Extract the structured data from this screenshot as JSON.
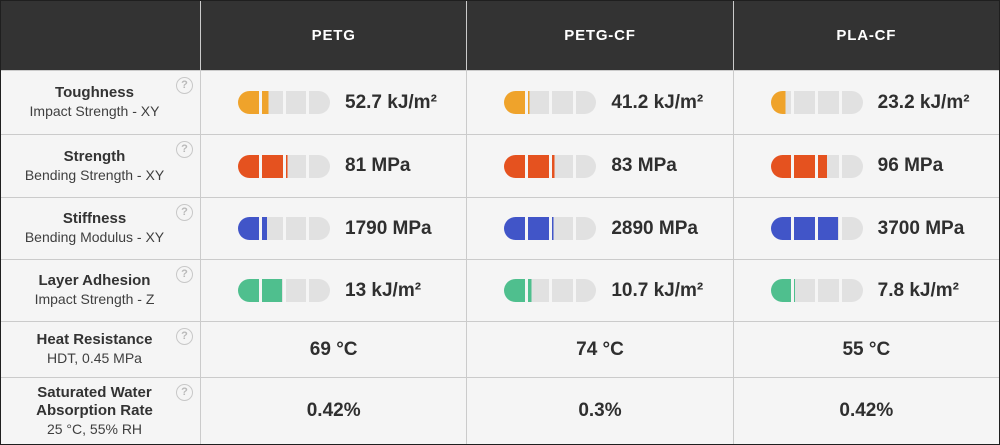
{
  "colors": {
    "header_bg": "#333333",
    "header_text": "#ffffff",
    "row_bg": "#f5f5f5",
    "grid_line": "#cbcbcb",
    "outer_border": "#1f1f1f",
    "gauge_empty": "#e1e1e1",
    "toughness_accent": "#efa32b",
    "strength_accent": "#e5521f",
    "stiffness_accent": "#4155c8",
    "adhesion_accent": "#4fbf8e"
  },
  "help_icon_glyph": "?",
  "columns": [
    "PETG",
    "PETG-CF",
    "PLA-CF"
  ],
  "rows": [
    {
      "id": "toughness",
      "title": "Toughness",
      "subtitle": "Impact Strength - XY",
      "type": "gauge",
      "color": "#efa32b",
      "cells": [
        {
          "value": "52.7 kJ/m²",
          "pct": 33
        },
        {
          "value": "41.2 kJ/m²",
          "pct": 27
        },
        {
          "value": "23.2 kJ/m²",
          "pct": 18
        }
      ]
    },
    {
      "id": "strength",
      "title": "Strength",
      "subtitle": "Bending Strength - XY",
      "type": "gauge",
      "color": "#e5521f",
      "cells": [
        {
          "value": "81 MPa",
          "pct": 52
        },
        {
          "value": "83 MPa",
          "pct": 53
        },
        {
          "value": "96 MPa",
          "pct": 61
        }
      ]
    },
    {
      "id": "stiffness",
      "title": "Stiffness",
      "subtitle": "Bending Modulus - XY",
      "type": "gauge",
      "color": "#4155c8",
      "cells": [
        {
          "value": "1790 MPa",
          "pct": 31
        },
        {
          "value": "2890 MPa",
          "pct": 52
        },
        {
          "value": "3700 MPa",
          "pct": 74
        }
      ]
    },
    {
      "id": "layer-adhesion",
      "title": "Layer Adhesion",
      "subtitle": "Impact Strength - Z",
      "type": "gauge",
      "color": "#4fbf8e",
      "cells": [
        {
          "value": "13 kJ/m²",
          "pct": 49
        },
        {
          "value": "10.7 kJ/m²",
          "pct": 29
        },
        {
          "value": "7.8 kJ/m²",
          "pct": 26
        }
      ]
    },
    {
      "id": "heat-resistance",
      "title": "Heat Resistance",
      "subtitle": "HDT, 0.45 MPa",
      "type": "text",
      "cells": [
        {
          "value": "69 °C"
        },
        {
          "value": "74 °C"
        },
        {
          "value": "55 °C"
        }
      ]
    },
    {
      "id": "water-absorption",
      "title": "Saturated Water Absorption Rate",
      "subtitle": "25 °C, 55% RH",
      "type": "text",
      "cells": [
        {
          "value": "0.42%"
        },
        {
          "value": "0.3%"
        },
        {
          "value": "0.42%"
        }
      ]
    }
  ]
}
